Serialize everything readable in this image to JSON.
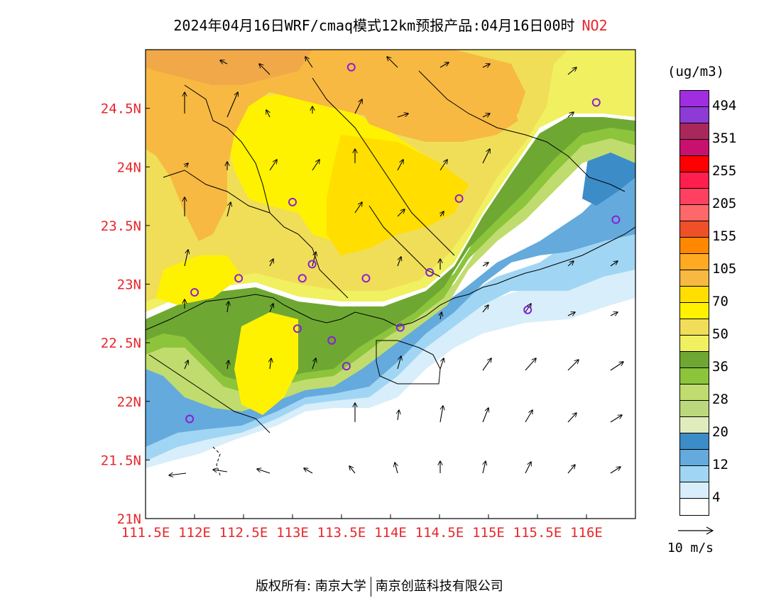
{
  "title": {
    "main": "2024年04月16日WRF/cmaq模式12km预报产品:04月16日00时",
    "species": "NO2"
  },
  "map": {
    "lon_range": [
      111.5,
      116.5
    ],
    "lat_range": [
      21.0,
      25.0
    ],
    "lon_ticks": [
      "111.5E",
      "112E",
      "112.5E",
      "113E",
      "113.5E",
      "114E",
      "114.5E",
      "115E",
      "115.5E",
      "116E"
    ],
    "lat_ticks": [
      "21N",
      "21.5N",
      "22N",
      "22.5N",
      "23N",
      "23.5N",
      "24N",
      "24.5N"
    ],
    "stations": [
      {
        "lon": 113.6,
        "lat": 24.85
      },
      {
        "lon": 116.1,
        "lat": 24.55
      },
      {
        "lon": 113.0,
        "lat": 23.7
      },
      {
        "lon": 114.7,
        "lat": 23.73
      },
      {
        "lon": 116.3,
        "lat": 23.55
      },
      {
        "lon": 113.2,
        "lat": 23.17
      },
      {
        "lon": 112.45,
        "lat": 23.05
      },
      {
        "lon": 113.1,
        "lat": 23.05
      },
      {
        "lon": 113.75,
        "lat": 23.05
      },
      {
        "lon": 114.4,
        "lat": 23.1
      },
      {
        "lon": 112.0,
        "lat": 22.93
      },
      {
        "lon": 115.4,
        "lat": 22.78
      },
      {
        "lon": 113.05,
        "lat": 22.62
      },
      {
        "lon": 114.1,
        "lat": 22.63
      },
      {
        "lon": 113.4,
        "lat": 22.52
      },
      {
        "lon": 113.55,
        "lat": 22.3
      },
      {
        "lon": 111.95,
        "lat": 21.85
      }
    ]
  },
  "legend": {
    "unit": "(ug/m3)",
    "colors": [
      "#a02ee0",
      "#8c3cd4",
      "#a8285c",
      "#c8106e",
      "#ff0000",
      "#ff1e4e",
      "#ff4060",
      "#ff6868",
      "#f05028",
      "#ff8800",
      "#ffaa22",
      "#f7b942",
      "#ffde00",
      "#fff200",
      "#f0de58",
      "#f0f060",
      "#6ea832",
      "#8cc43c",
      "#c0dc6e",
      "#bcd87c",
      "#e0ecbc",
      "#3c8cc8",
      "#64aadc",
      "#a0d6f4",
      "#d8eefa",
      "#ffffff"
    ],
    "labels": [
      "494",
      "351",
      "255",
      "205",
      "155",
      "105",
      "70",
      "50",
      "36",
      "28",
      "20",
      "12",
      "4"
    ]
  },
  "vector_key": {
    "label": "10 m/s"
  },
  "footer": {
    "copyright": "版权所有: 南京大学",
    "company": "南京创蓝科技有限公司"
  }
}
